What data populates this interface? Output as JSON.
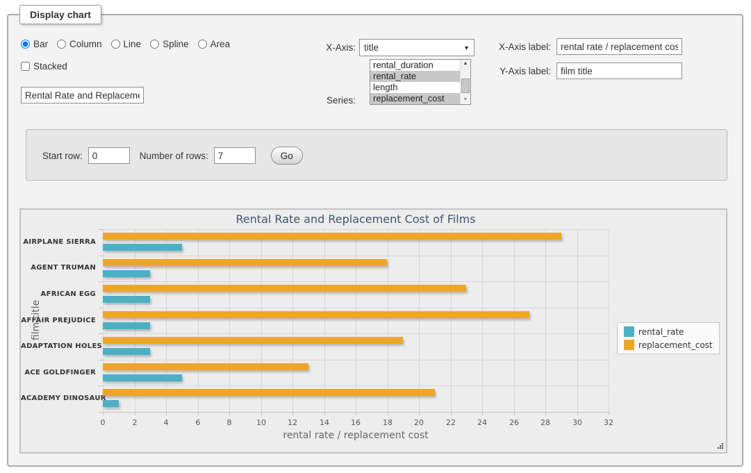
{
  "form": {
    "legend": "Display chart",
    "chart_types": [
      {
        "label": "Bar",
        "selected": true
      },
      {
        "label": "Column",
        "selected": false
      },
      {
        "label": "Line",
        "selected": false
      },
      {
        "label": "Spline",
        "selected": false
      },
      {
        "label": "Area",
        "selected": false
      }
    ],
    "stacked": {
      "label": "Stacked",
      "checked": false
    },
    "title_value": "Rental Rate and Replacemer",
    "x_axis": {
      "label": "X-Axis:",
      "selected": "title"
    },
    "series_picker": {
      "label": "Series:",
      "options": [
        {
          "label": "rental_duration",
          "selected": false
        },
        {
          "label": "rental_rate",
          "selected": true
        },
        {
          "label": "length",
          "selected": false
        },
        {
          "label": "replacement_cost",
          "selected": true
        }
      ]
    },
    "x_axis_label": {
      "label": "X-Axis label:",
      "value": "rental rate / replacement cost"
    },
    "y_axis_label": {
      "label": "Y-Axis label:",
      "value": "film title"
    }
  },
  "row_controls": {
    "start_row_label": "Start row:",
    "start_row_value": "0",
    "num_rows_label": "Number of rows:",
    "num_rows_value": "7",
    "go_label": "Go"
  },
  "chart_data": {
    "type": "bar",
    "title": "Rental Rate and Replacement Cost of Films",
    "categories": [
      "AIRPLANE SIERRA",
      "AGENT TRUMAN",
      "AFRICAN EGG",
      "AFFAIR PREJUDICE",
      "ADAPTATION HOLES",
      "ACE GOLDFINGER",
      "ACADEMY DINOSAUR"
    ],
    "series": [
      {
        "name": "rental_rate",
        "color": "#4DAFC4",
        "values": [
          4.99,
          2.99,
          2.99,
          2.99,
          2.99,
          4.99,
          0.99
        ]
      },
      {
        "name": "replacement_cost",
        "color": "#EDA62B",
        "values": [
          28.99,
          17.99,
          22.99,
          26.99,
          18.99,
          12.99,
          20.99
        ]
      }
    ],
    "bar_order_top_to_bottom": [
      "replacement_cost",
      "rental_rate"
    ],
    "xlabel": "rental rate / replacement cost",
    "ylabel": "film title",
    "xlim": [
      0,
      32
    ],
    "x_ticks": [
      0,
      2,
      4,
      6,
      8,
      10,
      12,
      14,
      16,
      18,
      20,
      22,
      24,
      26,
      28,
      30,
      32
    ],
    "legend_position": "right",
    "grid": true,
    "colors": {
      "title": "#3E576F",
      "grid_line": "#d7d7d7",
      "axis_line": "#c3c3c3",
      "tick_label": "#555555",
      "category_label": "#333333",
      "axis_title": "#666666"
    }
  }
}
